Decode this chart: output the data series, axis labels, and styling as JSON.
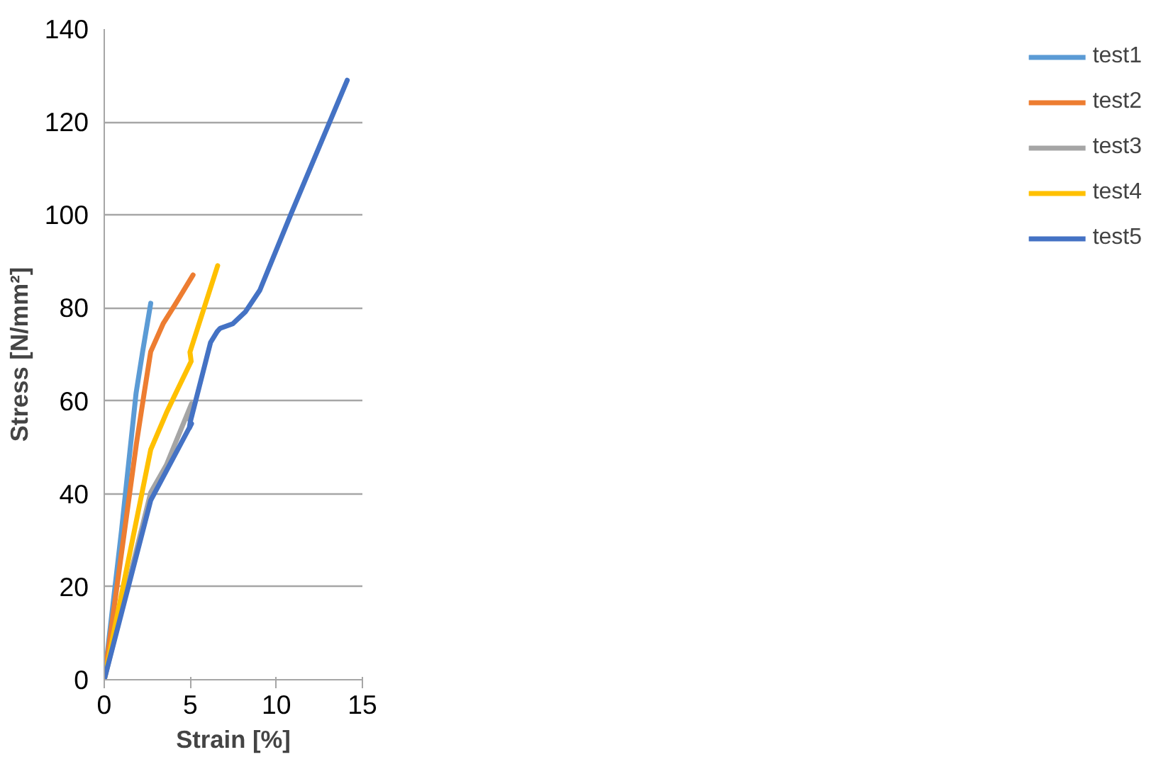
{
  "chart_data": {
    "type": "line",
    "xlabel": "Strain [%]",
    "ylabel": "Stress [N/mm²]",
    "xlim": [
      0,
      15
    ],
    "ylim": [
      0,
      140
    ],
    "xticks": [
      0,
      5,
      10,
      15
    ],
    "yticks": [
      0,
      20,
      40,
      60,
      80,
      100,
      120,
      140
    ],
    "grid": "y",
    "legend": "right",
    "marker": "none",
    "line_style": "solid",
    "series": [
      {
        "name": "test1",
        "color": "#5b9bd5",
        "x": [
          0,
          1.0,
          1.85,
          2.23,
          2.7
        ],
        "values": [
          0,
          32,
          61.7,
          70.6,
          81
        ]
      },
      {
        "name": "test2",
        "color": "#ed7d31",
        "x": [
          0,
          1.87,
          2.32,
          2.7,
          3.42,
          4.08,
          5.16
        ],
        "values": [
          0,
          50.8,
          61.7,
          70.6,
          76.6,
          80.5,
          87.1
        ]
      },
      {
        "name": "test3",
        "color": "#a5a5a5",
        "x": [
          0,
          2.7,
          3.61,
          5.07,
          4.95
        ],
        "values": [
          0,
          40.3,
          46.2,
          59.4,
          56
        ]
      },
      {
        "name": "test4",
        "color": "#ffc000",
        "x": [
          0,
          2.7,
          3.61,
          4.16,
          5.05,
          4.98,
          6.59
        ],
        "values": [
          0,
          49.5,
          57.4,
          61.7,
          68.5,
          70.5,
          89.1
        ]
      },
      {
        "name": "test5",
        "color": "#4472c4",
        "x": [
          0,
          2.7,
          5.07,
          4.94,
          5.0,
          6.18,
          6.56,
          6.73,
          7.47,
          8.21,
          9.04,
          10.86,
          14.12
        ],
        "values": [
          0,
          38.6,
          55.1,
          54.1,
          55.5,
          72.6,
          74.9,
          75.6,
          76.6,
          79.2,
          83.8,
          100.3,
          129.0
        ]
      }
    ]
  }
}
